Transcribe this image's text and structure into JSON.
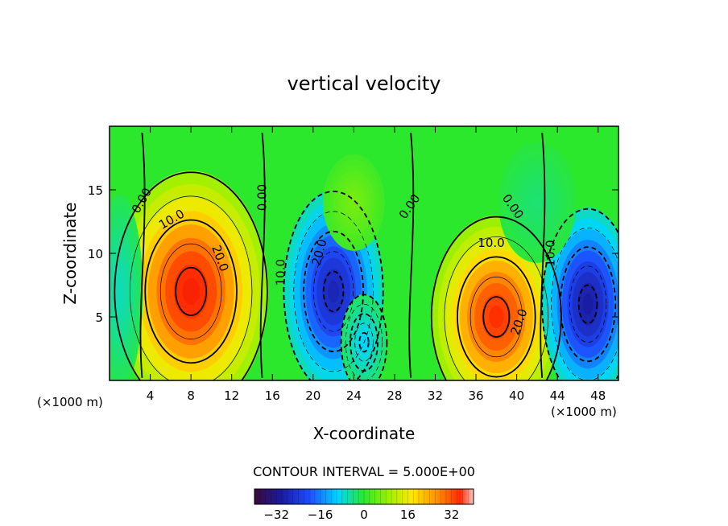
{
  "chart_data": {
    "type": "heatmap",
    "title": "vertical velocity",
    "xlabel": "X-coordinate",
    "ylabel": "Z-coordinate",
    "x_unit_left": "(×1000 m)",
    "x_unit_right": "(×1000 m)",
    "xlim": [
      0,
      50
    ],
    "ylim": [
      0,
      20
    ],
    "x_ticks": [
      4,
      8,
      12,
      16,
      20,
      24,
      28,
      32,
      36,
      40,
      44,
      48
    ],
    "y_ticks": [
      5,
      10,
      15
    ],
    "contour_interval_text": "CONTOUR INTERVAL = 5.000E+00",
    "colorbar": {
      "min": -40,
      "max": 40,
      "ticks": [
        -32,
        -16,
        0,
        16,
        32
      ],
      "tick_labels": [
        "−32",
        "−16",
        "0",
        "16",
        "32"
      ]
    },
    "cells": [
      {
        "x": 8,
        "z": 7,
        "w": 36,
        "sx": 4.0,
        "sz": 5.0
      },
      {
        "x": 22,
        "z": 7,
        "w": -30,
        "sx": 2.6,
        "sz": 4.2
      },
      {
        "x": 25,
        "z": 3,
        "w": -12,
        "sx": 1.2,
        "sz": 2.0
      },
      {
        "x": 38,
        "z": 5,
        "w": 34,
        "sx": 3.4,
        "sz": 4.2
      },
      {
        "x": 47,
        "z": 6,
        "w": -32,
        "sx": 2.4,
        "sz": 4.0
      },
      {
        "x": 1,
        "z": 7,
        "w": -8,
        "sx": 1.2,
        "sz": 4.0
      },
      {
        "x": 24,
        "z": 14,
        "w": 6,
        "sx": 1.6,
        "sz": 2.0
      },
      {
        "x": 42,
        "z": 14,
        "w": -4,
        "sx": 2.0,
        "sz": 2.5
      }
    ],
    "contour_labels": [
      {
        "text": "0.00",
        "x": 3.5,
        "z": 14.0,
        "rot": -60
      },
      {
        "text": "10.0",
        "x": 6.3,
        "z": 12.4,
        "rot": -30
      },
      {
        "text": "20.0",
        "x": 10.5,
        "z": 9.5,
        "rot": 70
      },
      {
        "text": "0.00",
        "x": 15.4,
        "z": 14.4,
        "rot": -90
      },
      {
        "text": "10.0",
        "x": 17.2,
        "z": 8.5,
        "rot": -90
      },
      {
        "text": "20.0",
        "x": 21.0,
        "z": 10.0,
        "rot": -75
      },
      {
        "text": "0.00",
        "x": 29.8,
        "z": 13.5,
        "rot": -55
      },
      {
        "text": "0.00",
        "x": 39.3,
        "z": 13.5,
        "rot": 55
      },
      {
        "text": "10.0",
        "x": 37.5,
        "z": 10.5,
        "rot": 0
      },
      {
        "text": "20.0",
        "x": 40.6,
        "z": 4.5,
        "rot": -70
      },
      {
        "text": "10.0",
        "x": 43.7,
        "z": 10.0,
        "rot": -90
      }
    ]
  }
}
